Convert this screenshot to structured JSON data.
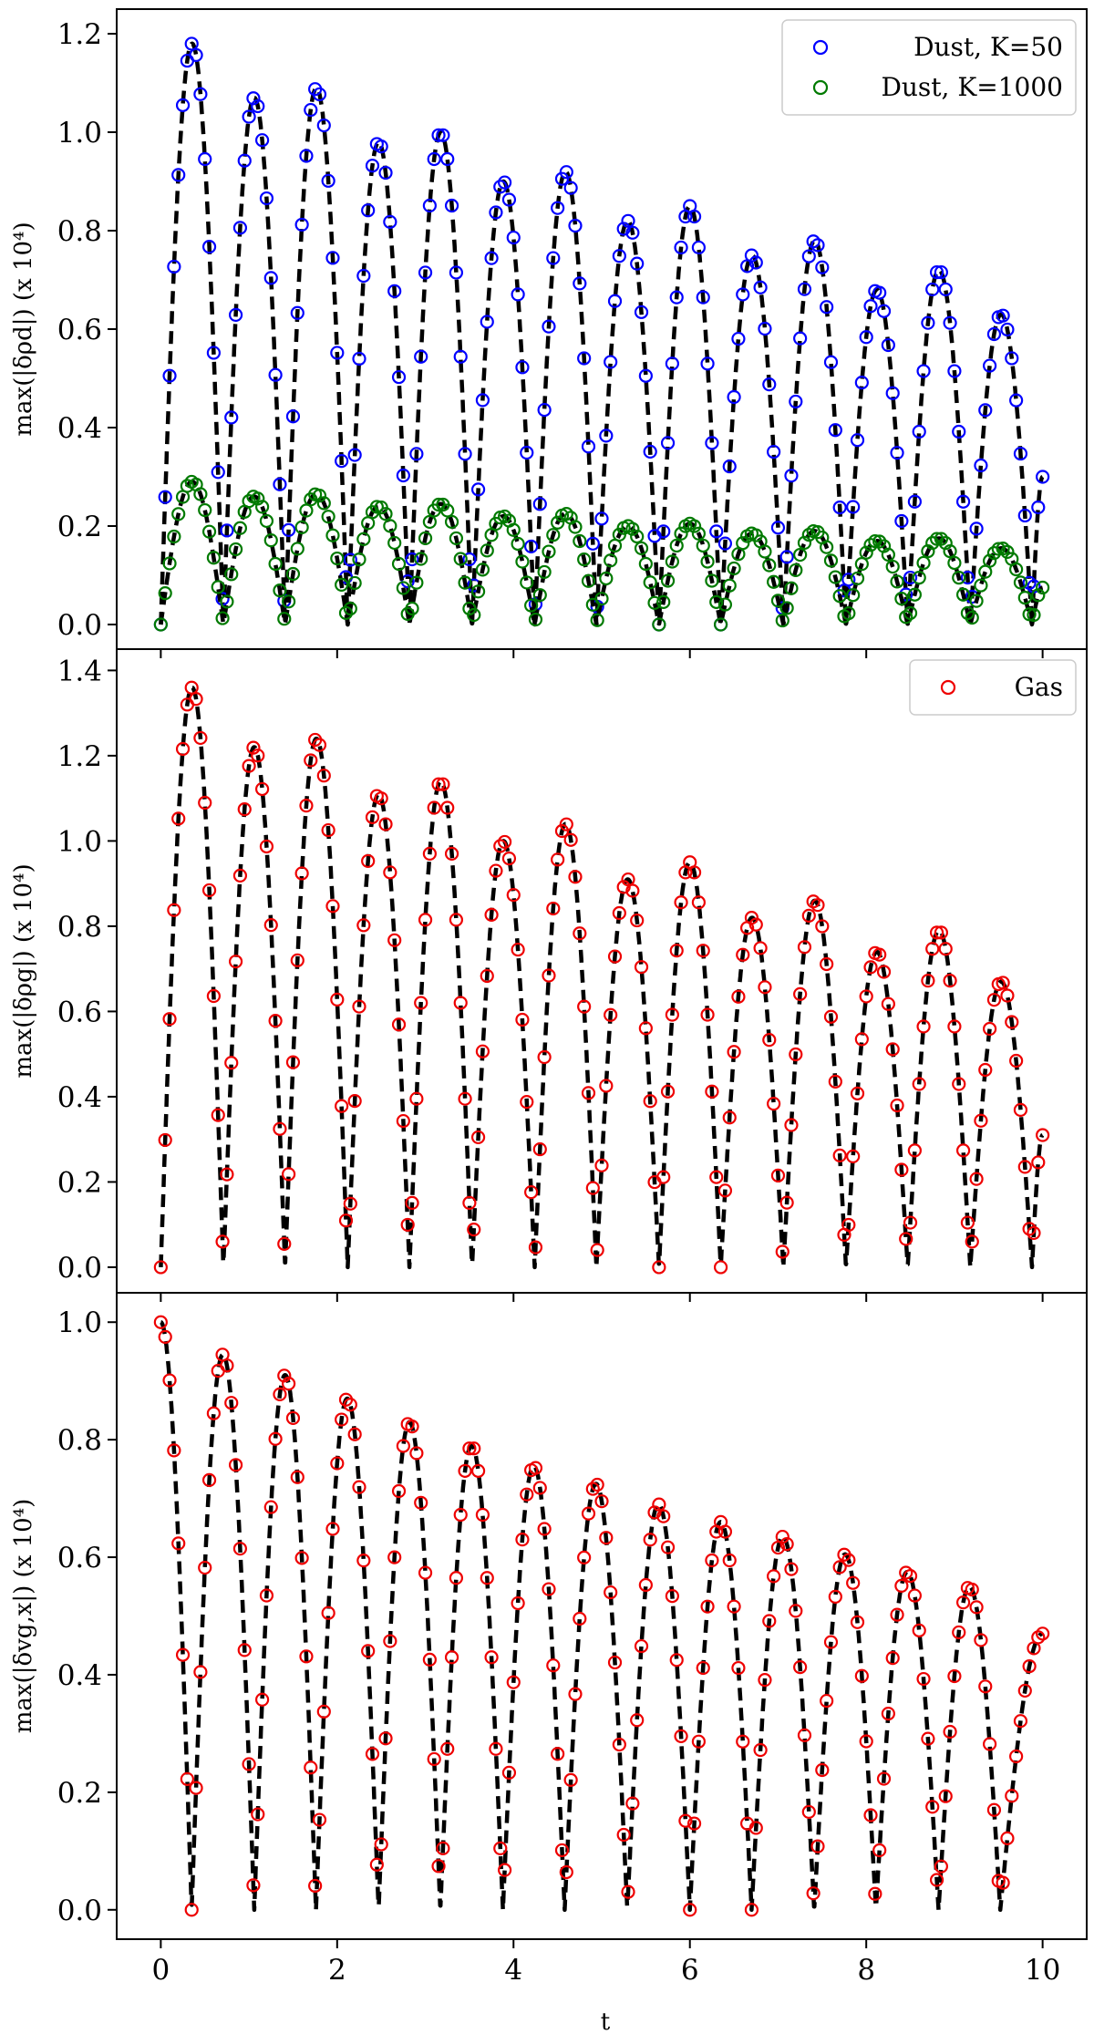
{
  "chart_data": {
    "type": "scatter",
    "xlabel": "t",
    "xlim": [
      -0.5,
      10.5
    ],
    "xticks": [
      0,
      2,
      4,
      6,
      8,
      10
    ],
    "xtick_labels": [
      "0",
      "2",
      "4",
      "6",
      "8",
      "10"
    ],
    "sample_dt": 0.05,
    "t_end": 10,
    "line_style": "black dashed (analytic solution)",
    "panels": [
      {
        "id": "dust",
        "ylabel": "max(|δρd|) (x 10⁴)",
        "ylim": [
          -0.05,
          1.25
        ],
        "yticks": [
          0.0,
          0.2,
          0.4,
          0.6,
          0.8,
          1.0,
          1.2
        ],
        "ytick_labels": [
          "0.0",
          "0.2",
          "0.4",
          "0.6",
          "0.8",
          "1.0",
          "1.2"
        ],
        "legend_position": "top-right",
        "series": [
          {
            "name": "Dust, K=50",
            "color": "#0000ff",
            "marker": "open-circle",
            "peaks": [
              [
                0.36,
                1.18
              ],
              [
                1.07,
                1.07
              ],
              [
                1.77,
                1.09
              ],
              [
                2.48,
                0.98
              ],
              [
                3.18,
                1.0
              ],
              [
                3.89,
                0.9
              ],
              [
                4.59,
                0.92
              ],
              [
                5.3,
                0.82
              ],
              [
                6.0,
                0.85
              ],
              [
                6.71,
                0.75
              ],
              [
                7.41,
                0.78
              ],
              [
                8.12,
                0.68
              ],
              [
                8.83,
                0.72
              ],
              [
                9.53,
                0.63
              ]
            ],
            "zeros": [
              0.0,
              0.71,
              1.41,
              2.12,
              2.82,
              3.53,
              4.24,
              4.94,
              5.65,
              6.35,
              7.06,
              7.77,
              8.47,
              9.18,
              9.88
            ],
            "end_value": 0.3
          },
          {
            "name": "Dust, K=1000",
            "color": "#007a00",
            "marker": "open-circle",
            "peaks": [
              [
                0.36,
                0.29
              ],
              [
                1.07,
                0.26
              ],
              [
                1.77,
                0.265
              ],
              [
                2.48,
                0.24
              ],
              [
                3.18,
                0.245
              ],
              [
                3.89,
                0.22
              ],
              [
                4.59,
                0.225
              ],
              [
                5.3,
                0.2
              ],
              [
                6.0,
                0.205
              ],
              [
                6.71,
                0.185
              ],
              [
                7.41,
                0.19
              ],
              [
                8.12,
                0.17
              ],
              [
                8.83,
                0.175
              ],
              [
                9.53,
                0.155
              ]
            ],
            "zeros": [
              0.0,
              0.71,
              1.41,
              2.12,
              2.82,
              3.53,
              4.24,
              4.94,
              5.65,
              6.35,
              7.06,
              7.77,
              8.47,
              9.18,
              9.88
            ],
            "end_value": 0.075
          }
        ]
      },
      {
        "id": "gas-density",
        "ylabel": "max(|δρg|) (x 10⁴)",
        "ylim": [
          -0.06,
          1.45
        ],
        "yticks": [
          0.0,
          0.2,
          0.4,
          0.6,
          0.8,
          1.0,
          1.2,
          1.4
        ],
        "ytick_labels": [
          "0.0",
          "0.2",
          "0.4",
          "0.6",
          "0.8",
          "1.0",
          "1.2",
          "1.4"
        ],
        "legend_position": "top-right",
        "series": [
          {
            "name": "Gas",
            "color": "#ee0000",
            "marker": "open-circle",
            "peaks": [
              [
                0.36,
                1.36
              ],
              [
                1.07,
                1.22
              ],
              [
                1.77,
                1.24
              ],
              [
                2.48,
                1.11
              ],
              [
                3.18,
                1.14
              ],
              [
                3.89,
                1.0
              ],
              [
                4.59,
                1.04
              ],
              [
                5.3,
                0.91
              ],
              [
                6.0,
                0.95
              ],
              [
                6.71,
                0.82
              ],
              [
                7.41,
                0.86
              ],
              [
                8.12,
                0.74
              ],
              [
                8.83,
                0.79
              ],
              [
                9.53,
                0.67
              ]
            ],
            "zeros": [
              0.0,
              0.71,
              1.41,
              2.12,
              2.82,
              3.53,
              4.24,
              4.94,
              5.65,
              6.35,
              7.06,
              7.77,
              8.47,
              9.18,
              9.88
            ],
            "end_value": 0.31
          }
        ]
      },
      {
        "id": "gas-velocity",
        "ylabel": "max(|δvg,x|) (x 10⁴)",
        "ylim": [
          -0.05,
          1.05
        ],
        "yticks": [
          0.0,
          0.2,
          0.4,
          0.6,
          0.8,
          1.0
        ],
        "ytick_labels": [
          "0.0",
          "0.2",
          "0.4",
          "0.6",
          "0.8",
          "1.0"
        ],
        "legend_position": "none",
        "series": [
          {
            "name": "Gas",
            "color": "#ee0000",
            "marker": "open-circle",
            "start_value": 1.0,
            "peaks": [
              [
                1.06,
                0.945
              ],
              [
                1.76,
                0.91
              ],
              [
                2.47,
                0.87
              ],
              [
                3.17,
                0.83
              ],
              [
                3.88,
                0.79
              ],
              [
                4.58,
                0.755
              ],
              [
                5.29,
                0.725
              ],
              [
                6.0,
                0.69
              ],
              [
                6.7,
                0.66
              ],
              [
                7.41,
                0.635
              ],
              [
                8.11,
                0.605
              ],
              [
                8.82,
                0.575
              ],
              [
                9.52,
                0.55
              ]
            ],
            "zeros": [
              0.35,
              1.06,
              1.76,
              2.47,
              3.17,
              3.88,
              4.58,
              5.29,
              6.0,
              6.7,
              7.41,
              8.11,
              8.82,
              9.52
            ],
            "zero_offset": 0.35,
            "end_value": 0.47
          }
        ]
      }
    ]
  }
}
